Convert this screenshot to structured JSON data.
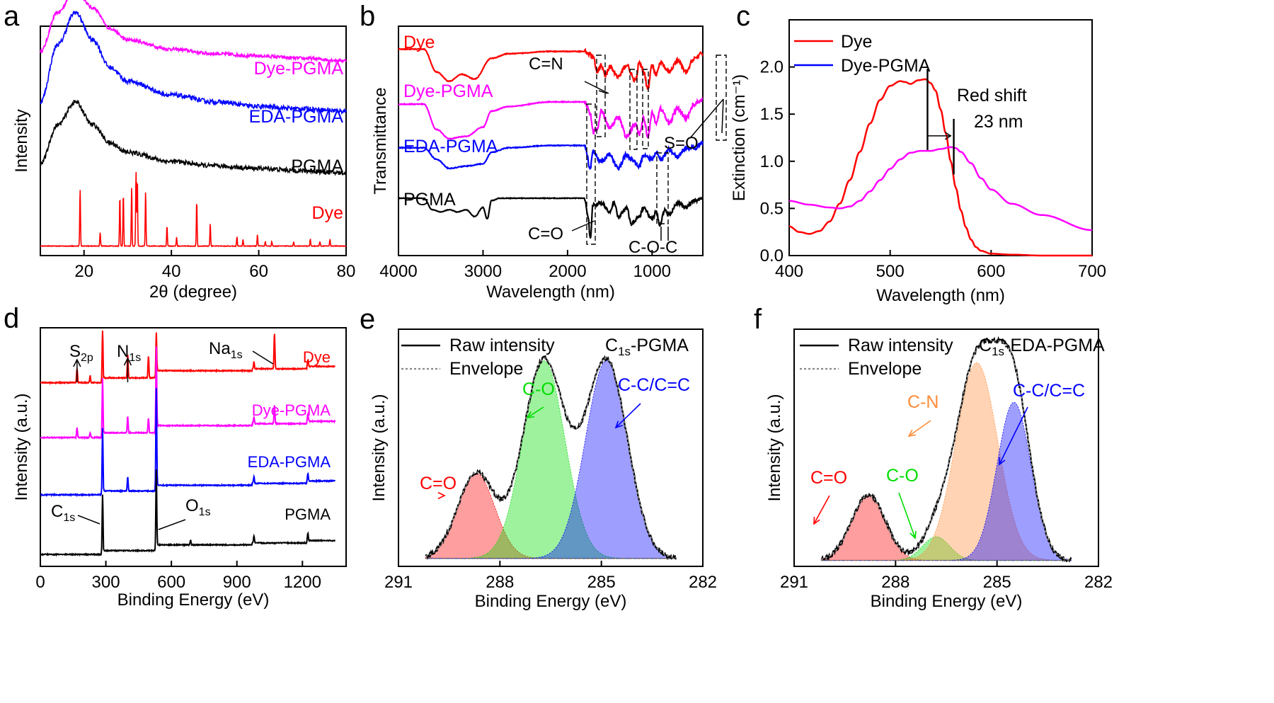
{
  "colors": {
    "dye": "#ff0000",
    "dye_pgma": "#ff00ff",
    "edapgma": "#0000ff",
    "pgma": "#000000",
    "co_green": "#00dd00",
    "cn_orange": "#ff8c3a",
    "envelope": "#888888"
  },
  "panels": [
    {
      "label": "a",
      "chart_data": {
        "type": "line",
        "xlabel": "2θ (degree)",
        "ylabel": "Intensity",
        "xlim": [
          10,
          80
        ],
        "xticks": [
          20,
          40,
          60,
          80
        ],
        "xtick_labels": [
          "20",
          "40",
          "60",
          "80"
        ],
        "show_y_ticks": false,
        "series": [
          {
            "name": "Dye-PGMA",
            "color": "#ff00ff",
            "x": [
              10,
              14,
              18,
              22,
              26,
              30,
              40,
              50,
              60,
              70,
              80
            ],
            "y": [
              0.05,
              0.22,
              0.32,
              0.24,
              0.15,
              0.1,
              0.06,
              0.04,
              0.03,
              0.02,
              0.01
            ],
            "offset": 0.84,
            "noise": 0.015
          },
          {
            "name": "EDA-PGMA",
            "color": "#0000ff",
            "x": [
              10,
              14,
              18,
              22,
              26,
              30,
              40,
              50,
              60,
              70,
              80
            ],
            "y": [
              0.05,
              0.3,
              0.44,
              0.32,
              0.2,
              0.14,
              0.08,
              0.05,
              0.03,
              0.02,
              0.01
            ],
            "offset": 0.62,
            "noise": 0.02
          },
          {
            "name": "PGMA",
            "color": "#000000",
            "x": [
              10,
              14,
              18,
              22,
              26,
              30,
              40,
              50,
              60,
              70,
              80
            ],
            "y": [
              0.05,
              0.22,
              0.32,
              0.22,
              0.14,
              0.1,
              0.06,
              0.04,
              0.03,
              0.02,
              0.01
            ],
            "offset": 0.35,
            "noise": 0.02
          },
          {
            "name": "Dye",
            "color": "#ff0000",
            "x": [
              10,
              19.1,
              23.7,
              28.2,
              29.0,
              30.9,
              31.9,
              32.2,
              34.1,
              39.0,
              41.2,
              45.8,
              48.9,
              55.0,
              56.4,
              59.7,
              61.5,
              63.0,
              68.0,
              71.8,
              74.0,
              76.3,
              80
            ],
            "y": [
              0,
              0.25,
              0.06,
              0.22,
              0.23,
              0.26,
              0.33,
              0.3,
              0.24,
              0.09,
              0.04,
              0.2,
              0.1,
              0.04,
              0.03,
              0.05,
              0.02,
              0.02,
              0.02,
              0.03,
              0.02,
              0.03,
              0
            ],
            "offset": 0.04,
            "sticks": true
          }
        ],
        "legend_labels": [
          "Dye-PGMA",
          "EDA-PGMA",
          "PGMA",
          "Dye"
        ]
      }
    },
    {
      "label": "b",
      "chart_data": {
        "type": "line",
        "xlabel": "Wavelength (nm)",
        "ylabel": "Transmittance",
        "xlim": [
          4000,
          400
        ],
        "xticks": [
          4000,
          3000,
          2000,
          1000
        ],
        "xtick_labels": [
          "4000",
          "3000",
          "2000",
          "1000"
        ],
        "show_y_ticks": false,
        "series": [
          {
            "name": "Dye",
            "color": "#ff0000",
            "x": [
              4000,
              3700,
              3550,
              3400,
              3250,
              3100,
              2900,
              2700,
              2200,
              1800,
              1700,
              1650,
              1600,
              1550,
              1500,
              1400,
              1300,
              1200,
              1150,
              1100,
              1050,
              1000,
              950,
              900,
              800,
              700,
              600,
              500,
              400
            ],
            "y": [
              0.9,
              0.9,
              0.8,
              0.76,
              0.79,
              0.77,
              0.86,
              0.88,
              0.89,
              0.89,
              0.87,
              0.8,
              0.83,
              0.79,
              0.82,
              0.78,
              0.83,
              0.76,
              0.84,
              0.8,
              0.73,
              0.83,
              0.79,
              0.84,
              0.8,
              0.85,
              0.8,
              0.86,
              0.88
            ],
            "noise": 0.008
          },
          {
            "name": "Dye-PGMA",
            "color": "#ff00ff",
            "x": [
              4000,
              3700,
              3550,
              3400,
              3200,
              3000,
              2900,
              2700,
              2200,
              1800,
              1730,
              1700,
              1650,
              1600,
              1500,
              1400,
              1300,
              1200,
              1150,
              1100,
              1050,
              1000,
              950,
              900,
              800,
              700,
              600,
              500,
              400
            ],
            "y": [
              0.66,
              0.66,
              0.55,
              0.51,
              0.52,
              0.56,
              0.63,
              0.65,
              0.67,
              0.67,
              0.62,
              0.54,
              0.55,
              0.63,
              0.56,
              0.6,
              0.52,
              0.57,
              0.53,
              0.6,
              0.52,
              0.62,
              0.58,
              0.64,
              0.58,
              0.64,
              0.6,
              0.66,
              0.68
            ],
            "noise": 0.008
          },
          {
            "name": "EDA-PGMA",
            "color": "#0000ff",
            "x": [
              4000,
              3700,
              3550,
              3400,
              3200,
              3000,
              2900,
              2700,
              2200,
              1800,
              1730,
              1700,
              1600,
              1500,
              1400,
              1300,
              1250,
              1150,
              1100,
              1000,
              950,
              900,
              800,
              700,
              600,
              500,
              400
            ],
            "y": [
              0.47,
              0.47,
              0.42,
              0.38,
              0.39,
              0.4,
              0.45,
              0.47,
              0.48,
              0.48,
              0.38,
              0.45,
              0.41,
              0.44,
              0.38,
              0.44,
              0.42,
              0.39,
              0.44,
              0.42,
              0.45,
              0.42,
              0.46,
              0.43,
              0.47,
              0.47,
              0.49
            ],
            "noise": 0.008
          },
          {
            "name": "PGMA",
            "color": "#000000",
            "x": [
              4000,
              3700,
              3600,
              3500,
              3400,
              3300,
              3200,
              3100,
              3000,
              2950,
              2900,
              2800,
              2200,
              1800,
              1760,
              1730,
              1700,
              1600,
              1500,
              1450,
              1400,
              1300,
              1250,
              1150,
              1100,
              1000,
              950,
              910,
              850,
              800,
              700,
              600,
              500,
              400
            ],
            "y": [
              0.25,
              0.25,
              0.2,
              0.19,
              0.2,
              0.19,
              0.2,
              0.17,
              0.21,
              0.16,
              0.24,
              0.25,
              0.25,
              0.25,
              0.17,
              0.08,
              0.22,
              0.23,
              0.19,
              0.23,
              0.17,
              0.21,
              0.14,
              0.17,
              0.21,
              0.16,
              0.19,
              0.13,
              0.2,
              0.18,
              0.23,
              0.21,
              0.24,
              0.25
            ],
            "noise": 0.006
          }
        ],
        "legend_labels": [
          "Dye",
          "Dye-PGMA",
          "EDA-PGMA",
          "PGMA"
        ],
        "annotations": [
          "C=N",
          "S=O",
          "C=O",
          "C-O-C"
        ]
      }
    },
    {
      "label": "c",
      "chart_data": {
        "type": "line",
        "xlabel": "Wavelength (nm)",
        "ylabel": "Extinction (cm⁻¹)",
        "xlim": [
          400,
          700
        ],
        "ylim": [
          0,
          2.5
        ],
        "xticks": [
          400,
          500,
          600,
          700
        ],
        "xtick_labels": [
          "400",
          "500",
          "600",
          "700"
        ],
        "yticks": [
          0.0,
          0.5,
          1.0,
          1.5,
          2.0
        ],
        "ytick_labels": [
          "0.0",
          "0.5",
          "1.0",
          "1.5",
          "2.0"
        ],
        "series": [
          {
            "name": "Dye",
            "color": "#ff0000",
            "x": [
              400,
              410,
              420,
              430,
              440,
              450,
              460,
              470,
              480,
              490,
              500,
              510,
              515,
              520,
              528,
              535,
              540,
              545,
              550,
              555,
              560,
              565,
              570,
              575,
              580,
              585,
              590,
              600,
              620,
              650,
              700
            ],
            "y": [
              0.31,
              0.25,
              0.23,
              0.26,
              0.36,
              0.55,
              0.8,
              1.1,
              1.4,
              1.65,
              1.8,
              1.85,
              1.84,
              1.82,
              1.86,
              1.87,
              1.83,
              1.75,
              1.55,
              1.3,
              1.0,
              0.72,
              0.48,
              0.3,
              0.17,
              0.09,
              0.05,
              0.02,
              0.01,
              0.0,
              0.0
            ]
          },
          {
            "name": "Dye-PGMA",
            "color": "#ff00ff",
            "x": [
              400,
              420,
              440,
              450,
              460,
              470,
              480,
              490,
              500,
              510,
              520,
              530,
              540,
              550,
              560,
              565,
              570,
              580,
              590,
              600,
              620,
              650,
              700
            ],
            "y": [
              0.58,
              0.54,
              0.51,
              0.5,
              0.52,
              0.58,
              0.68,
              0.8,
              0.92,
              1.02,
              1.09,
              1.11,
              1.11,
              1.13,
              1.15,
              1.14,
              1.1,
              0.98,
              0.82,
              0.7,
              0.55,
              0.43,
              0.27
            ]
          }
        ],
        "legend": "top-left",
        "legend_labels": [
          "Dye",
          "Dye-PGMA"
        ],
        "annotations": [
          "Red shift",
          "23 nm"
        ]
      }
    },
    {
      "label": "d",
      "chart_data": {
        "type": "line",
        "xlabel": "Binding Energy (eV)",
        "ylabel": "Intensity (a.u.)",
        "xlim": [
          0,
          1400
        ],
        "xticks": [
          0,
          300,
          600,
          900,
          1200
        ],
        "xtick_labels": [
          "0",
          "300",
          "600",
          "900",
          "1200"
        ],
        "show_y_ticks": false,
        "series": [
          {
            "name": "Dye",
            "color": "#ff0000",
            "offset": 0.77,
            "base_rise": 0.05,
            "peaks": [
              [
                168,
                0.06
              ],
              [
                228,
                0.03
              ],
              [
                285,
                0.22
              ],
              [
                400,
                0.1
              ],
              [
                495,
                0.09
              ],
              [
                531,
                0.19
              ],
              [
                978,
                0.03
              ],
              [
                1072,
                0.15
              ],
              [
                1225,
                0.03
              ]
            ]
          },
          {
            "name": "Dye-PGMA",
            "color": "#ff00ff",
            "offset": 0.54,
            "base_rise": 0.05,
            "peaks": [
              [
                168,
                0.04
              ],
              [
                228,
                0.02
              ],
              [
                285,
                0.25
              ],
              [
                400,
                0.07
              ],
              [
                495,
                0.06
              ],
              [
                531,
                0.36
              ],
              [
                978,
                0.03
              ],
              [
                1072,
                0.08
              ],
              [
                1225,
                0.03
              ]
            ]
          },
          {
            "name": "EDA-PGMA",
            "color": "#0000ff",
            "offset": 0.3,
            "base_rise": 0.04,
            "peaks": [
              [
                285,
                0.28
              ],
              [
                400,
                0.06
              ],
              [
                531,
                0.43
              ],
              [
                978,
                0.03
              ],
              [
                1225,
                0.03
              ]
            ]
          },
          {
            "name": "PGMA",
            "color": "#000000",
            "offset": 0.05,
            "base_rise": 0.04,
            "peaks": [
              [
                285,
                0.25
              ],
              [
                531,
                0.34
              ],
              [
                688,
                0.02
              ],
              [
                978,
                0.03
              ],
              [
                1225,
                0.03
              ]
            ]
          }
        ],
        "legend_labels": [
          "Dye",
          "Dye-PGMA",
          "EDA-PGMA",
          "PGMA"
        ],
        "annotations": [
          "S",
          "2p",
          "N",
          "1s",
          "Na",
          "1s",
          "C",
          "1s",
          "O",
          "1s"
        ]
      }
    },
    {
      "label": "e",
      "chart_data": {
        "type": "area",
        "xlabel": "Binding Energy (eV)",
        "ylabel": "Intensity (a.u.)",
        "xlim": [
          291,
          282
        ],
        "ylim": [
          0,
          1.2
        ],
        "xticks": [
          291,
          288,
          285,
          282
        ],
        "xtick_labels": [
          "291",
          "288",
          "285",
          "282"
        ],
        "show_y_ticks": false,
        "title_main": "C",
        "title_sub": "1s",
        "title_rest": "-PGMA",
        "legend_labels": [
          "Raw intensity",
          "Envelope"
        ],
        "fit_range": [
          290.2,
          282.8
        ],
        "baseline": 0.04,
        "components": [
          {
            "name": "C=O",
            "color": "#ff0000",
            "center": 288.7,
            "amp": 0.43,
            "sigma": 0.55
          },
          {
            "name": "C-O",
            "color": "#00dd00",
            "center": 286.7,
            "amp": 1.0,
            "sigma": 0.62
          },
          {
            "name": "C-C/C=C",
            "color": "#0000ff",
            "center": 284.85,
            "amp": 1.0,
            "sigma": 0.62
          }
        ],
        "peak_labels": [
          "C=O",
          "C-O",
          "C-C/C=C"
        ]
      }
    },
    {
      "label": "f",
      "chart_data": {
        "type": "area",
        "xlabel": "Binding Energy (eV)",
        "ylabel": "Intensity (a.u.)",
        "xlim": [
          291,
          282
        ],
        "ylim": [
          0,
          1.2
        ],
        "xticks": [
          291,
          288,
          285,
          282
        ],
        "xtick_labels": [
          "291",
          "288",
          "285",
          "282"
        ],
        "show_y_ticks": false,
        "title_main": "C",
        "title_sub": "1s",
        "title_rest": "-EDA-PGMA",
        "legend_labels": [
          "Raw intensity",
          "Envelope"
        ],
        "fit_range": [
          290.2,
          282.8
        ],
        "baseline": 0.03,
        "components": [
          {
            "name": "C=O",
            "color": "#ff0000",
            "center": 288.8,
            "amp": 0.33,
            "sigma": 0.5
          },
          {
            "name": "C-O",
            "color": "#00dd00",
            "center": 286.8,
            "amp": 0.12,
            "sigma": 0.4
          },
          {
            "name": "C-N",
            "color": "#ff8c3a",
            "center": 285.6,
            "amp": 1.0,
            "sigma": 0.62
          },
          {
            "name": "C-C/C=C",
            "color": "#0000ff",
            "center": 284.5,
            "amp": 0.8,
            "sigma": 0.5
          }
        ],
        "peak_labels": [
          "C=O",
          "C-O",
          "C-N",
          "C-C/C=C"
        ]
      }
    }
  ]
}
